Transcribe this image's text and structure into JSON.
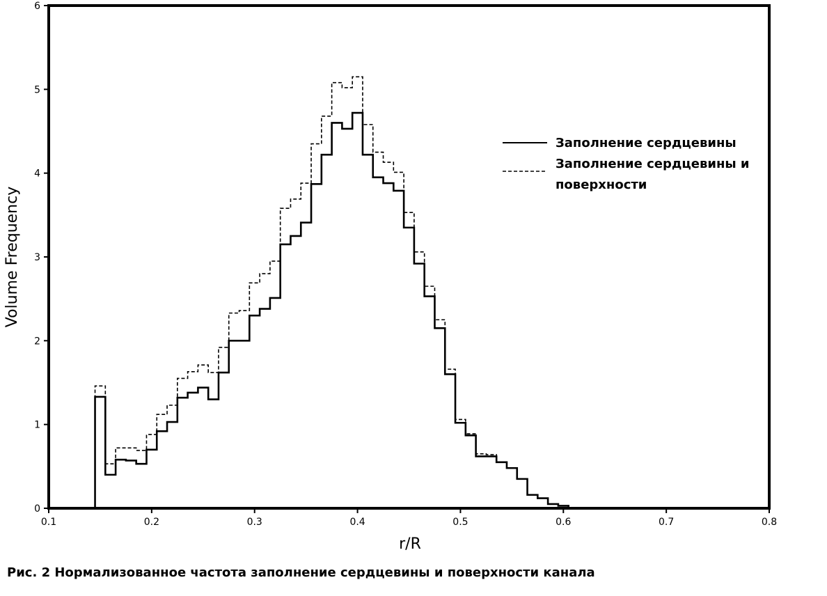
{
  "caption": "Рис. 2 Нормализованное частота заполнение сердцевины и поверхности канала",
  "chart_data": {
    "type": "line",
    "step": true,
    "title": "",
    "xlabel": "r/R",
    "ylabel": "Volume Frequency",
    "xlim": [
      0.1,
      0.8
    ],
    "ylim": [
      0,
      6
    ],
    "xticks": [
      "0.1",
      "0.2",
      "0.3",
      "0.4",
      "0.5",
      "0.6",
      "0.7",
      "0.8"
    ],
    "yticks": [
      "0",
      "1",
      "2",
      "3",
      "4",
      "5",
      "6"
    ],
    "grid": false,
    "legend": "right",
    "series": [
      {
        "name": "Заполнение сердцевины",
        "style": "solid",
        "x": [
          0.1,
          0.145,
          0.15,
          0.155,
          0.165,
          0.175,
          0.185,
          0.195,
          0.205,
          0.215,
          0.225,
          0.235,
          0.245,
          0.255,
          0.265,
          0.275,
          0.285,
          0.295,
          0.305,
          0.315,
          0.325,
          0.335,
          0.345,
          0.355,
          0.365,
          0.375,
          0.385,
          0.395,
          0.405,
          0.415,
          0.425,
          0.435,
          0.445,
          0.455,
          0.465,
          0.475,
          0.485,
          0.495,
          0.505,
          0.515,
          0.525,
          0.535,
          0.545,
          0.555,
          0.565,
          0.575,
          0.585,
          0.595,
          0.605
        ],
        "y": [
          0.0,
          1.33,
          1.33,
          0.4,
          0.58,
          0.57,
          0.53,
          0.7,
          0.92,
          1.03,
          1.32,
          1.38,
          1.44,
          1.3,
          1.62,
          2.0,
          2.0,
          2.3,
          2.38,
          2.51,
          3.15,
          3.25,
          3.41,
          3.87,
          4.22,
          4.6,
          4.53,
          4.72,
          4.22,
          3.95,
          3.88,
          3.79,
          3.35,
          2.92,
          2.53,
          2.15,
          1.6,
          1.02,
          0.87,
          0.62,
          0.62,
          0.55,
          0.48,
          0.35,
          0.16,
          0.12,
          0.05,
          0.03,
          0.0
        ]
      },
      {
        "name": "Заполнение сердцевины и поверхности",
        "style": "dashed",
        "x": [
          0.1,
          0.145,
          0.15,
          0.155,
          0.165,
          0.175,
          0.185,
          0.195,
          0.205,
          0.215,
          0.225,
          0.235,
          0.245,
          0.255,
          0.265,
          0.275,
          0.285,
          0.295,
          0.305,
          0.315,
          0.325,
          0.335,
          0.345,
          0.355,
          0.365,
          0.375,
          0.385,
          0.395,
          0.405,
          0.415,
          0.425,
          0.435,
          0.445,
          0.455,
          0.465,
          0.475,
          0.485,
          0.495,
          0.505,
          0.515,
          0.525,
          0.535,
          0.545,
          0.555,
          0.565,
          0.575,
          0.585,
          0.595,
          0.605
        ],
        "y": [
          0.0,
          1.46,
          1.46,
          0.53,
          0.72,
          0.72,
          0.69,
          0.88,
          1.12,
          1.23,
          1.55,
          1.63,
          1.71,
          1.62,
          1.92,
          2.33,
          2.36,
          2.69,
          2.8,
          2.95,
          3.58,
          3.69,
          3.88,
          4.35,
          4.68,
          5.08,
          5.02,
          5.15,
          4.58,
          4.25,
          4.13,
          4.01,
          3.53,
          3.06,
          2.65,
          2.25,
          1.66,
          1.06,
          0.89,
          0.65,
          0.64,
          0.55,
          0.48,
          0.35,
          0.16,
          0.12,
          0.05,
          0.03,
          0.0
        ]
      }
    ]
  }
}
